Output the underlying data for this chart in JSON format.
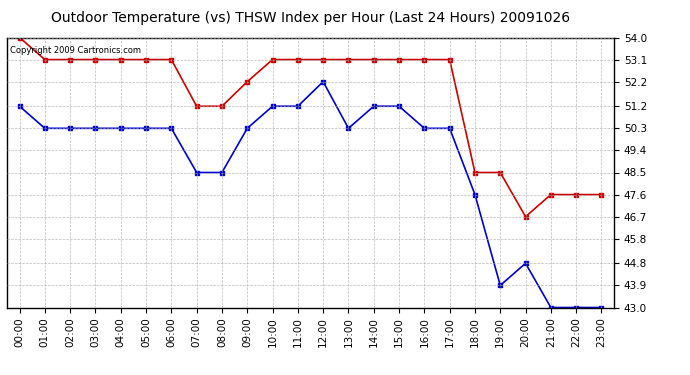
{
  "title": "Outdoor Temperature (vs) THSW Index per Hour (Last 24 Hours) 20091026",
  "copyright": "Copyright 2009 Cartronics.com",
  "hours": [
    "00:00",
    "01:00",
    "02:00",
    "03:00",
    "04:00",
    "05:00",
    "06:00",
    "07:00",
    "08:00",
    "09:00",
    "10:00",
    "11:00",
    "12:00",
    "13:00",
    "14:00",
    "15:00",
    "16:00",
    "17:00",
    "18:00",
    "19:00",
    "20:00",
    "21:00",
    "22:00",
    "23:00"
  ],
  "temp": [
    51.2,
    50.3,
    50.3,
    50.3,
    50.3,
    50.3,
    50.3,
    48.5,
    48.5,
    50.3,
    51.2,
    51.2,
    52.2,
    50.3,
    51.2,
    51.2,
    50.3,
    50.3,
    47.6,
    43.9,
    44.8,
    43.0,
    43.0,
    43.0
  ],
  "thsw": [
    54.0,
    53.1,
    53.1,
    53.1,
    53.1,
    53.1,
    53.1,
    51.2,
    51.2,
    52.2,
    53.1,
    53.1,
    53.1,
    53.1,
    53.1,
    53.1,
    53.1,
    53.1,
    48.5,
    48.5,
    46.7,
    47.6,
    47.6,
    47.6
  ],
  "temp_color": "#0000cc",
  "thsw_color": "#cc0000",
  "bg_color": "#ffffff",
  "grid_color": "#aaaaaa",
  "ylim_min": 43.0,
  "ylim_max": 54.0,
  "yticks": [
    43.0,
    43.9,
    44.8,
    45.8,
    46.7,
    47.6,
    48.5,
    49.4,
    50.3,
    51.2,
    52.2,
    53.1,
    54.0
  ],
  "title_fontsize": 10,
  "tick_fontsize": 7.5,
  "copyright_fontsize": 6
}
